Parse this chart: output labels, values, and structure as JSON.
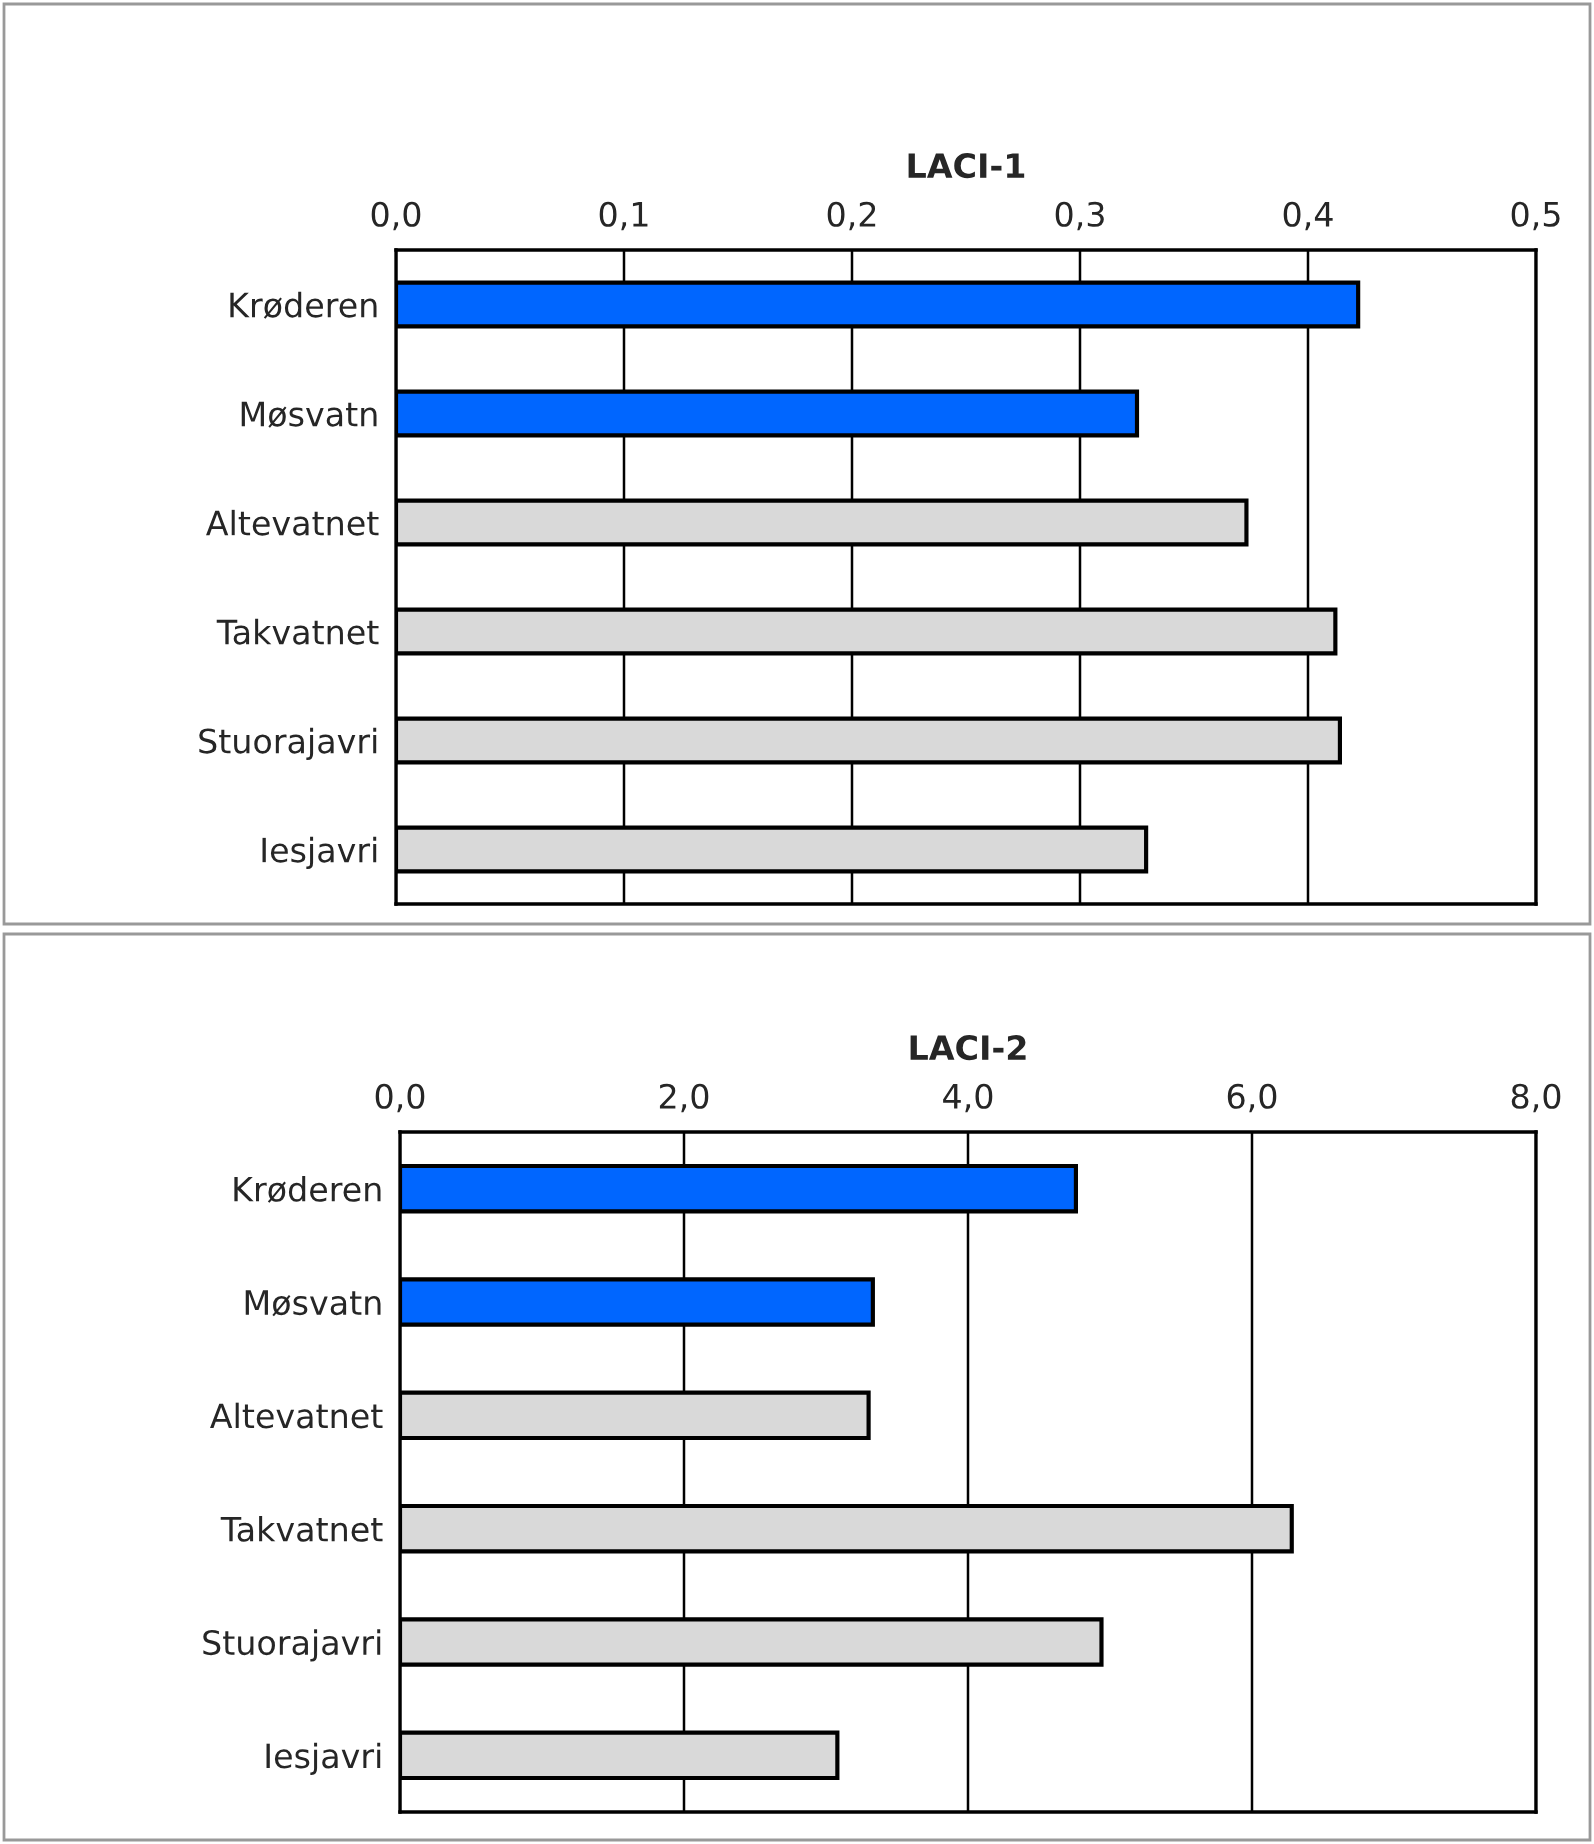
{
  "chart_data": [
    {
      "type": "bar",
      "orientation": "horizontal",
      "title": "LACI-1",
      "categories": [
        "Krøderen",
        "Møsvatn",
        "Altevatnet",
        "Takvatnet",
        "Stuorajavri",
        "Iesjavri"
      ],
      "values": [
        0.422,
        0.325,
        0.373,
        0.412,
        0.414,
        0.329
      ],
      "colors": [
        "#0066ff",
        "#0066ff",
        "#d9d9d9",
        "#d9d9d9",
        "#d9d9d9",
        "#d9d9d9"
      ],
      "xlim": [
        0,
        0.5
      ],
      "xticks": [
        {
          "value": 0,
          "label": "0,0"
        },
        {
          "value": 0.1,
          "label": "0,1"
        },
        {
          "value": 0.2,
          "label": "0,2"
        },
        {
          "value": 0.3,
          "label": "0,3"
        },
        {
          "value": 0.4,
          "label": "0,4"
        },
        {
          "value": 0.5,
          "label": "0,5"
        }
      ],
      "grid": "x",
      "legend": false
    },
    {
      "type": "bar",
      "orientation": "horizontal",
      "title": "LACI-2",
      "categories": [
        "Krøderen",
        "Møsvatn",
        "Altevatnet",
        "Takvatnet",
        "Stuorajavri",
        "Iesjavri"
      ],
      "values": [
        4.76,
        3.33,
        3.3,
        6.28,
        4.94,
        3.08
      ],
      "colors": [
        "#0066ff",
        "#0066ff",
        "#d9d9d9",
        "#d9d9d9",
        "#d9d9d9",
        "#d9d9d9"
      ],
      "xlim": [
        0,
        8
      ],
      "xticks": [
        {
          "value": 0,
          "label": "0,0"
        },
        {
          "value": 2,
          "label": "2,0"
        },
        {
          "value": 4,
          "label": "4,0"
        },
        {
          "value": 6,
          "label": "6,0"
        },
        {
          "value": 8,
          "label": "8,0"
        }
      ],
      "grid": "x",
      "legend": false
    }
  ]
}
